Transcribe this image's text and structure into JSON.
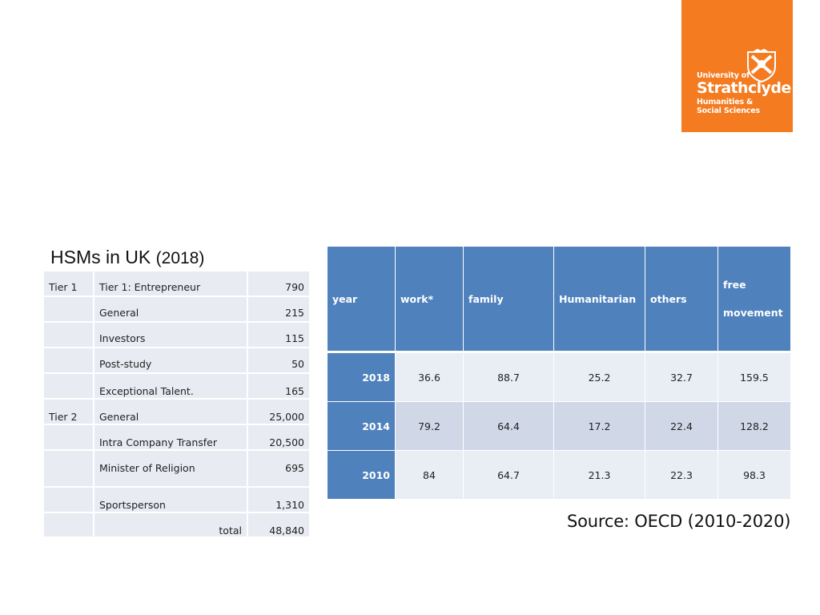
{
  "logo": {
    "line1": "University of",
    "line2": "Strathclyde",
    "line3": "Humanities &",
    "line4": "Social Sciences",
    "color": "#f47b20",
    "icon": "crest-icon"
  },
  "hsm": {
    "title_main": "HSMs in UK",
    "title_year": "(2018)",
    "rows": [
      {
        "tier": "Tier 1",
        "category": "Tier 1: Entrepreneur",
        "value": "790"
      },
      {
        "tier": "",
        "category": "General",
        "value": "215"
      },
      {
        "tier": "",
        "category": "Investors",
        "value": "115"
      },
      {
        "tier": "",
        "category": "Post-study",
        "value": "50"
      },
      {
        "tier": "",
        "category": "Exceptional Talent.",
        "value": "165"
      },
      {
        "tier": "Tier 2",
        "category": "General",
        "value": "25,000"
      },
      {
        "tier": "",
        "category": "Intra Company Transfer",
        "value": "20,500"
      },
      {
        "tier": "",
        "category": "Minister of Religion",
        "value": "695"
      },
      {
        "tier": "",
        "category": "Sportsperson",
        "value": "1,310"
      }
    ],
    "total_label": "total",
    "total_value": "48,840"
  },
  "flows": {
    "headers": {
      "year": "year",
      "work": "work*",
      "family": "family",
      "humanitarian": "Humanitarian",
      "others": "others",
      "free1": "free",
      "free2": "movement"
    },
    "rows": [
      {
        "year": "2018",
        "work": "36.6",
        "family": "88.7",
        "humanitarian": "25.2",
        "others": "32.7",
        "free": "159.5"
      },
      {
        "year": "2014",
        "work": "79.2",
        "family": "64.4",
        "humanitarian": "17.2",
        "others": "22.4",
        "free": "128.2"
      },
      {
        "year": "2010",
        "work": "84",
        "family": "64.7",
        "humanitarian": "21.3",
        "others": "22.3",
        "free": "98.3"
      }
    ],
    "header_color": "#4f81bd"
  },
  "source": "Source: OECD (2010-2020)"
}
